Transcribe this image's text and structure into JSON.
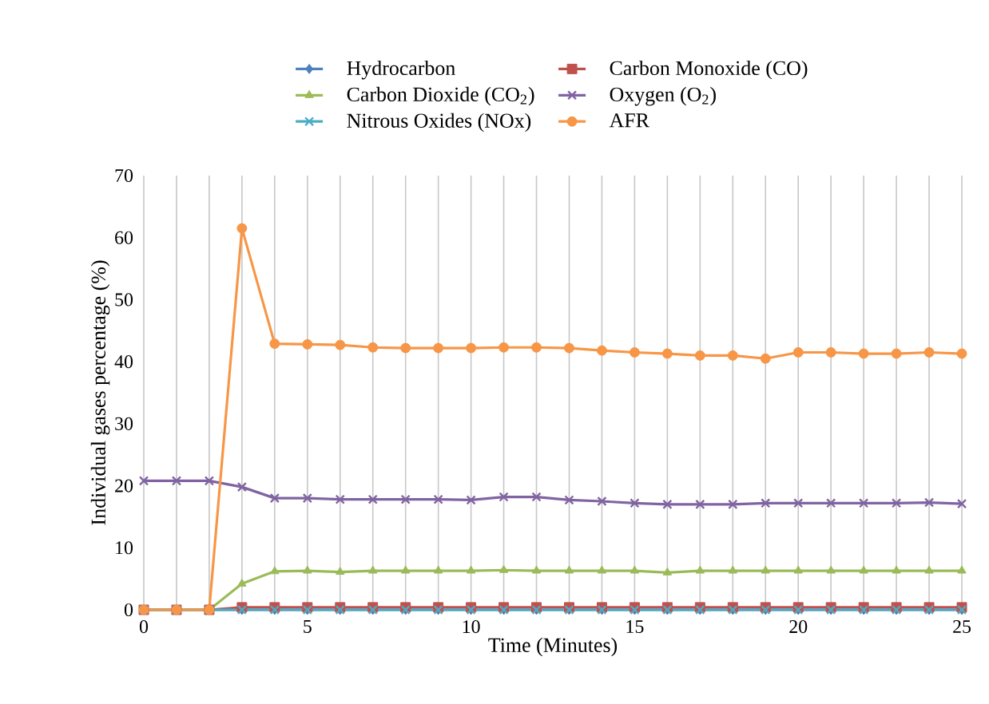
{
  "chart_data": {
    "type": "line",
    "xlabel": "Time (Minutes)",
    "ylabel": "Individual gases percentage (%)",
    "x": [
      0,
      1,
      2,
      3,
      4,
      5,
      6,
      7,
      8,
      9,
      10,
      11,
      12,
      13,
      14,
      15,
      16,
      17,
      18,
      19,
      20,
      21,
      22,
      23,
      24,
      25
    ],
    "series": [
      {
        "name": "Hydrocarbon",
        "color": "#4f81bd",
        "marker": "diamond",
        "values": [
          0,
          0,
          0,
          0,
          0,
          0,
          0,
          0,
          0,
          0,
          0,
          0,
          0,
          0,
          0,
          0,
          0,
          0,
          0,
          0,
          0,
          0,
          0,
          0,
          0,
          0
        ]
      },
      {
        "name": "Carbon Monoxide (CO)",
        "color": "#c0504d",
        "marker": "square",
        "values": [
          0,
          0,
          0,
          0.4,
          0.4,
          0.4,
          0.4,
          0.4,
          0.4,
          0.4,
          0.4,
          0.4,
          0.4,
          0.4,
          0.4,
          0.4,
          0.4,
          0.4,
          0.4,
          0.4,
          0.4,
          0.4,
          0.4,
          0.4,
          0.4,
          0.4
        ]
      },
      {
        "name": "Carbon Dioxide (CO$_{2}$)",
        "color": "#9bbb59",
        "marker": "triangle",
        "values": [
          0,
          0,
          0,
          4.2,
          6.2,
          6.3,
          6.1,
          6.3,
          6.3,
          6.3,
          6.3,
          6.4,
          6.3,
          6.3,
          6.3,
          6.3,
          6.0,
          6.3,
          6.3,
          6.3,
          6.3,
          6.3,
          6.3,
          6.3,
          6.3,
          6.3
        ]
      },
      {
        "name": "Oxygen (O$_{2}$)",
        "color": "#8064a2",
        "marker": "cross",
        "values": [
          20.8,
          20.8,
          20.8,
          19.8,
          18,
          18,
          17.8,
          17.8,
          17.8,
          17.8,
          17.7,
          18.2,
          18.2,
          17.7,
          17.5,
          17.2,
          17,
          17,
          17,
          17.2,
          17.2,
          17.2,
          17.2,
          17.2,
          17.3,
          17.1
        ]
      },
      {
        "name": "Nitrous Oxides (NOx)",
        "color": "#4bacc6",
        "marker": "cross",
        "values": [
          0,
          0,
          0,
          0,
          0,
          0,
          0,
          0,
          0,
          0,
          0,
          0,
          0,
          0,
          0,
          0,
          0,
          0,
          0,
          0,
          0,
          0,
          0,
          0,
          0,
          0
        ]
      },
      {
        "name": "AFR",
        "color": "#f79646",
        "marker": "circle",
        "values": [
          0,
          0,
          0,
          61.5,
          42.9,
          42.8,
          42.7,
          42.3,
          42.2,
          42.2,
          42.2,
          42.3,
          42.3,
          42.2,
          41.8,
          41.5,
          41.3,
          41,
          41,
          40.5,
          41.5,
          41.5,
          41.3,
          41.3,
          41.5,
          41.3
        ]
      }
    ],
    "xlim": [
      0,
      25
    ],
    "xticks": [
      0,
      {
        "value": 1,
        "label": null
      },
      {
        "value": 2,
        "label": null
      },
      {
        "value": 3,
        "label": null
      },
      {
        "value": 4,
        "label": null
      },
      5,
      {
        "value": 6,
        "label": null
      },
      {
        "value": 7,
        "label": null
      },
      {
        "value": 8,
        "label": null
      },
      {
        "value": 9,
        "label": null
      },
      10,
      {
        "value": 11,
        "label": null
      },
      {
        "value": 12,
        "label": null
      },
      {
        "value": 13,
        "label": null
      },
      {
        "value": 14,
        "label": null
      },
      15,
      {
        "value": 16,
        "label": null
      },
      {
        "value": 17,
        "label": null
      },
      {
        "value": 18,
        "label": null
      },
      {
        "value": 19,
        "label": null
      },
      20,
      {
        "value": 21,
        "label": null
      },
      {
        "value": 22,
        "label": null
      },
      {
        "value": 23,
        "label": null
      },
      {
        "value": 24,
        "label": null
      },
      25
    ],
    "ylim": [
      0,
      70
    ],
    "yticks": [
      0,
      10,
      20,
      30,
      40,
      50,
      60,
      70
    ],
    "grid": "x",
    "legend": "top",
    "line_style": "solid"
  }
}
